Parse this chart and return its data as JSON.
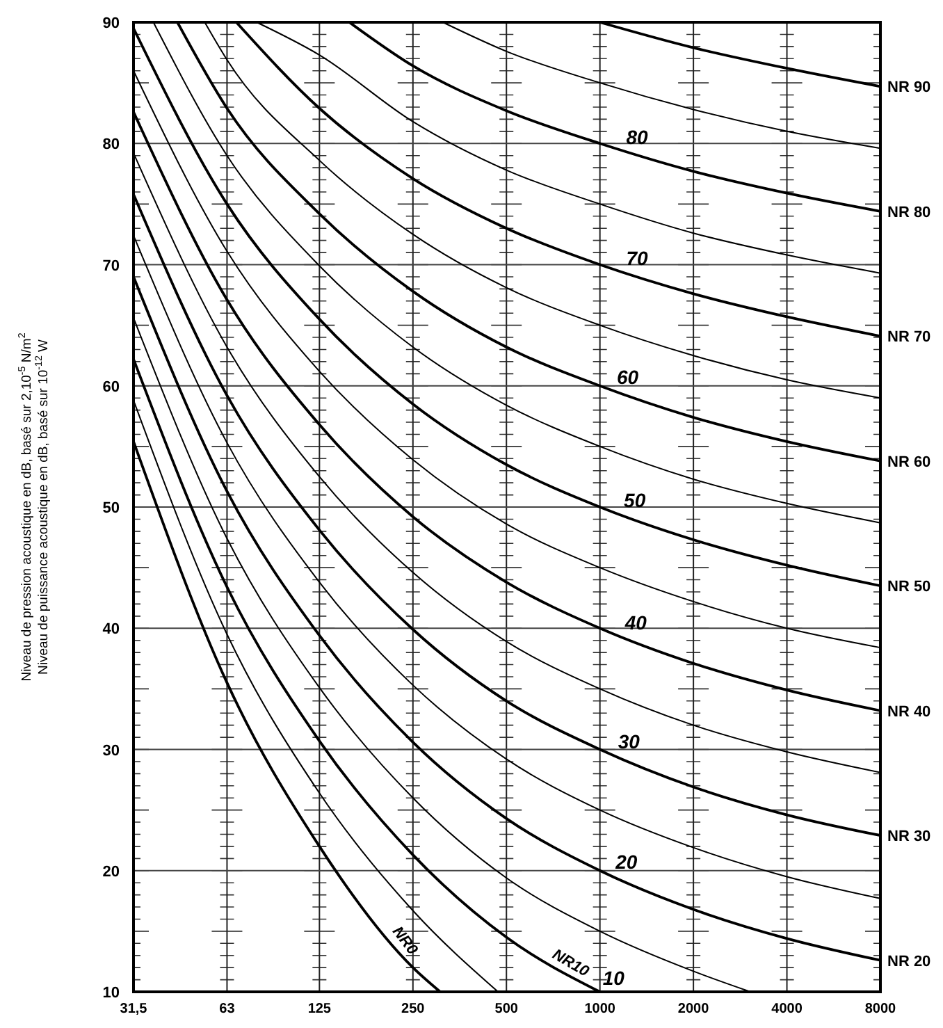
{
  "chart_data": {
    "type": "line",
    "ylabel": "Niveau de pression acoustique en dB, basé sur 2,10$^{-5}$ N/m$^{2}$\nNiveau de puissance acoustique en dB, basé sur 10$^{-12}$ W",
    "log": "x",
    "xlim": [
      31.5,
      8000
    ],
    "xticks": [
      {
        "value": 31.5,
        "label": "31,5"
      },
      63,
      125,
      250,
      500,
      1000,
      2000,
      4000,
      8000
    ],
    "ylim": [
      10,
      90
    ],
    "yticks": [
      10,
      20,
      30,
      40,
      50,
      60,
      70,
      80,
      90
    ],
    "grid": true,
    "series": [
      {
        "name": "NR0",
        "color": "#000000",
        "x": [
          31.5,
          63,
          125,
          250,
          306
        ],
        "values": [
          55.4,
          35.5,
          22.0,
          12.0,
          10
        ]
      },
      {
        "color": "#000000",
        "x": [
          31.5,
          63,
          125,
          250,
          470
        ],
        "values": [
          58.8,
          39.5,
          26.4,
          16.7,
          10
        ]
      },
      {
        "name": "NR10",
        "color": "#000000",
        "x": [
          31.5,
          63,
          125,
          250,
          500,
          1000
        ],
        "values": [
          62.2,
          43.4,
          30.7,
          21.3,
          14.5,
          10
        ]
      },
      {
        "color": "#000000",
        "x": [
          31.5,
          63,
          125,
          250,
          500,
          1000,
          2000,
          3056
        ],
        "values": [
          65.6,
          47.4,
          35.1,
          26.0,
          19.4,
          15,
          11.7,
          10
        ]
      },
      {
        "name": "NR 20",
        "color": "#000000",
        "x": [
          31.5,
          63,
          125,
          250,
          500,
          1000,
          2000,
          4000,
          8000
        ],
        "values": [
          69.0,
          51.3,
          39.4,
          30.6,
          24.3,
          20,
          16.8,
          14.4,
          12.6
        ]
      },
      {
        "color": "#000000",
        "x": [
          31.5,
          63,
          125,
          250,
          500,
          1000,
          2000,
          4000,
          8000
        ],
        "values": [
          72.4,
          55.3,
          43.8,
          35.3,
          29.2,
          25,
          21.9,
          19.5,
          17.7
        ]
      },
      {
        "name": "NR 30",
        "color": "#000000",
        "x": [
          31.5,
          63,
          125,
          250,
          500,
          1000,
          2000,
          4000,
          8000
        ],
        "values": [
          75.8,
          59.2,
          48.1,
          39.9,
          34.0,
          30,
          26.9,
          24.6,
          22.9
        ]
      },
      {
        "color": "#000000",
        "x": [
          31.5,
          63,
          125,
          250,
          500,
          1000,
          2000,
          4000,
          8000
        ],
        "values": [
          79.2,
          63.2,
          52.5,
          44.6,
          38.9,
          35,
          32.0,
          29.8,
          28.1
        ]
      },
      {
        "name": "NR 40",
        "color": "#000000",
        "x": [
          31.5,
          63,
          125,
          250,
          500,
          1000,
          2000,
          4000,
          8000
        ],
        "values": [
          82.6,
          67.1,
          56.8,
          49.2,
          43.8,
          40,
          37.1,
          34.9,
          33.2
        ]
      },
      {
        "color": "#000000",
        "x": [
          31.5,
          63,
          125,
          250,
          500,
          1000,
          2000,
          4000,
          8000
        ],
        "values": [
          86.0,
          71.1,
          61.2,
          53.9,
          48.6,
          45,
          42.2,
          40.0,
          38.4
        ]
      },
      {
        "name": "NR 50",
        "color": "#000000",
        "x": [
          31.5,
          63,
          125,
          250,
          500,
          1000,
          2000,
          4000,
          8000
        ],
        "values": [
          89.5,
          75.0,
          65.5,
          58.5,
          53.5,
          50,
          47.3,
          45.2,
          43.5
        ]
      },
      {
        "color": "#000000",
        "x": [
          36.5,
          63,
          125,
          250,
          500,
          1000,
          2000,
          4000,
          8000
        ],
        "values": [
          90,
          79.0,
          69.9,
          63.2,
          58.4,
          55,
          52.3,
          50.3,
          48.7
        ]
      },
      {
        "name": "NR 60",
        "color": "#000000",
        "x": [
          43.6,
          63,
          125,
          250,
          500,
          1000,
          2000,
          4000,
          8000
        ],
        "values": [
          90,
          82.9,
          74.2,
          67.8,
          63.2,
          60,
          57.4,
          55.4,
          53.8
        ]
      },
      {
        "color": "#000000",
        "x": [
          53.4,
          63,
          125,
          250,
          500,
          1000,
          2000,
          4000,
          8000
        ],
        "values": [
          90,
          86.9,
          78.6,
          72.5,
          68.1,
          65,
          62.5,
          60.5,
          59.0
        ]
      },
      {
        "name": "NR 70",
        "color": "#000000",
        "x": [
          67.5,
          125,
          250,
          500,
          1000,
          2000,
          4000,
          8000
        ],
        "values": [
          90,
          82.9,
          77.1,
          73.0,
          70,
          67.6,
          65.7,
          64.1
        ]
      },
      {
        "color": "#000000",
        "x": [
          78.5,
          125,
          250,
          500,
          1000,
          2000,
          4000,
          8000
        ],
        "values": [
          90,
          87.3,
          81.8,
          77.8,
          75,
          72.6,
          70.8,
          69.3
        ]
      },
      {
        "name": "NR 80",
        "color": "#000000",
        "x": [
          156,
          250,
          500,
          1000,
          2000,
          4000,
          8000
        ],
        "values": [
          90,
          86.4,
          82.7,
          80,
          77.7,
          75.9,
          74.4
        ]
      },
      {
        "color": "#000000",
        "x": [
          312,
          500,
          1000,
          2000,
          4000,
          8000
        ],
        "values": [
          90,
          87.6,
          85,
          82.8,
          81.0,
          79.6
        ]
      },
      {
        "name": "NR 90",
        "color": "#000000",
        "x": [
          1000,
          2000,
          4000,
          8000
        ],
        "values": [
          90,
          87.9,
          86.2,
          84.7
        ]
      }
    ],
    "annotations": [
      {
        "text": "80",
        "x": 1190,
        "y": 79.4
      },
      {
        "text": "70",
        "x": 1190,
        "y": 69.4
      },
      {
        "text": "60",
        "x": 1110,
        "y": 59.6
      },
      {
        "text": "50",
        "x": 1170,
        "y": 49.4
      },
      {
        "text": "40",
        "x": 1180,
        "y": 39.3
      },
      {
        "text": "30",
        "x": 1120,
        "y": 29.5
      },
      {
        "text": "20",
        "x": 1100,
        "y": 19.6
      },
      {
        "text": "10",
        "x": 1000,
        "y": 10
      }
    ]
  }
}
